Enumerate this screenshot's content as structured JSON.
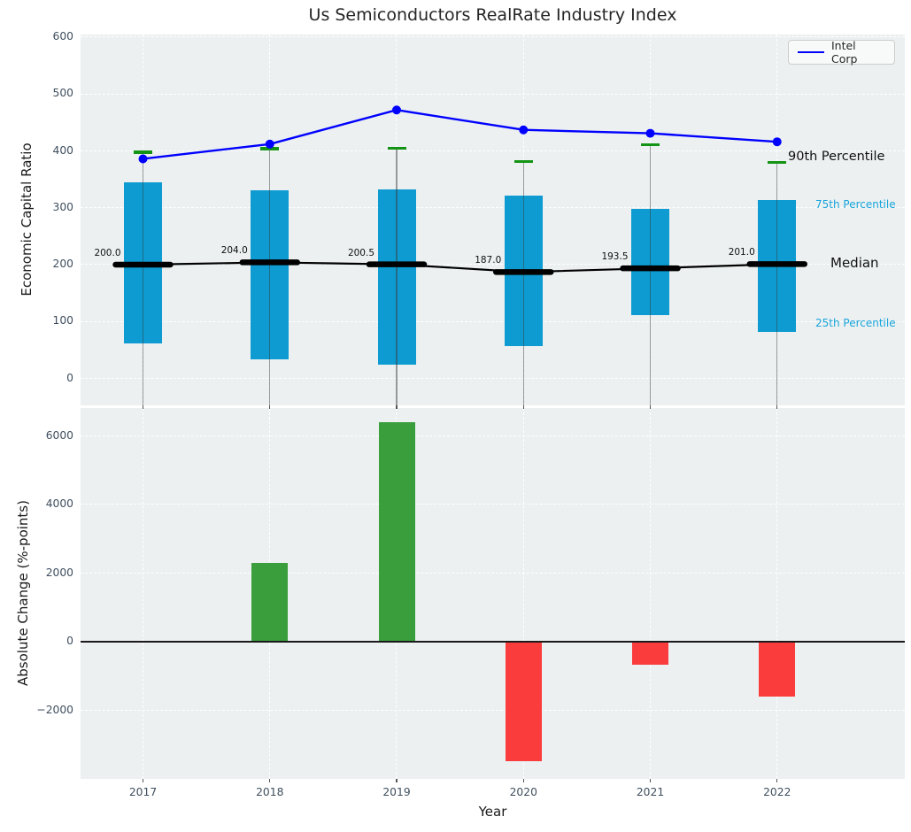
{
  "title": "Us Semiconductors RealRate Industry Index",
  "legend": {
    "label": "Intel Corp",
    "position": "upper right"
  },
  "annotations": {
    "p90": "90th Percentile",
    "p75": "75th Percentile",
    "median": "Median",
    "p25": "25th Percentile"
  },
  "colors": {
    "panel_bg": "#ecf0f1",
    "grid": "#ffffff",
    "box": "#0d9bd1",
    "p90_tick": "#149414",
    "median_line": "#000000",
    "intel_line": "#0000ff",
    "annotation_cyan": "#18a5dc",
    "tick_text": "#3f4f5f",
    "bar_positive": "#3a9e3c",
    "bar_negative": "#fa3c3c",
    "zero_line": "#1a1a1a",
    "whisker": "rgba(60,60,60,0.5)"
  },
  "chart_data": [
    {
      "type": "box-line",
      "panel": "top",
      "ylabel": "Economic Capital Ratio",
      "categories": [
        "2017",
        "2018",
        "2019",
        "2020",
        "2021",
        "2022"
      ],
      "yticks": [
        0,
        100,
        200,
        300,
        400,
        500,
        600
      ],
      "ylim": [
        -47,
        604
      ],
      "grid": true,
      "legend_position": "upper right",
      "series": [
        {
          "name": "90th Percentile",
          "values": [
            398,
            404,
            405,
            381,
            411,
            380
          ]
        },
        {
          "name": "75th Percentile",
          "values": [
            344,
            330,
            332,
            322,
            298,
            313
          ]
        },
        {
          "name": "Median",
          "values": [
            200.0,
            204.0,
            200.5,
            187.0,
            193.5,
            201.0
          ]
        },
        {
          "name": "25th Percentile",
          "values": [
            62,
            33,
            24,
            57,
            112,
            82
          ]
        },
        {
          "name": "Intel Corp",
          "values": [
            386,
            412,
            472,
            437,
            431,
            416
          ]
        }
      ]
    },
    {
      "type": "bar",
      "panel": "bottom",
      "ylabel": "Absolute Change (%-points)",
      "xlabel": "Year",
      "categories": [
        "2017",
        "2018",
        "2019",
        "2020",
        "2021",
        "2022"
      ],
      "values": [
        null,
        2300,
        6400,
        -3480,
        -660,
        -1610
      ],
      "yticks": [
        -2000,
        0,
        2000,
        4000,
        6000
      ],
      "ylim": [
        -4000,
        6800
      ],
      "grid": true
    }
  ]
}
